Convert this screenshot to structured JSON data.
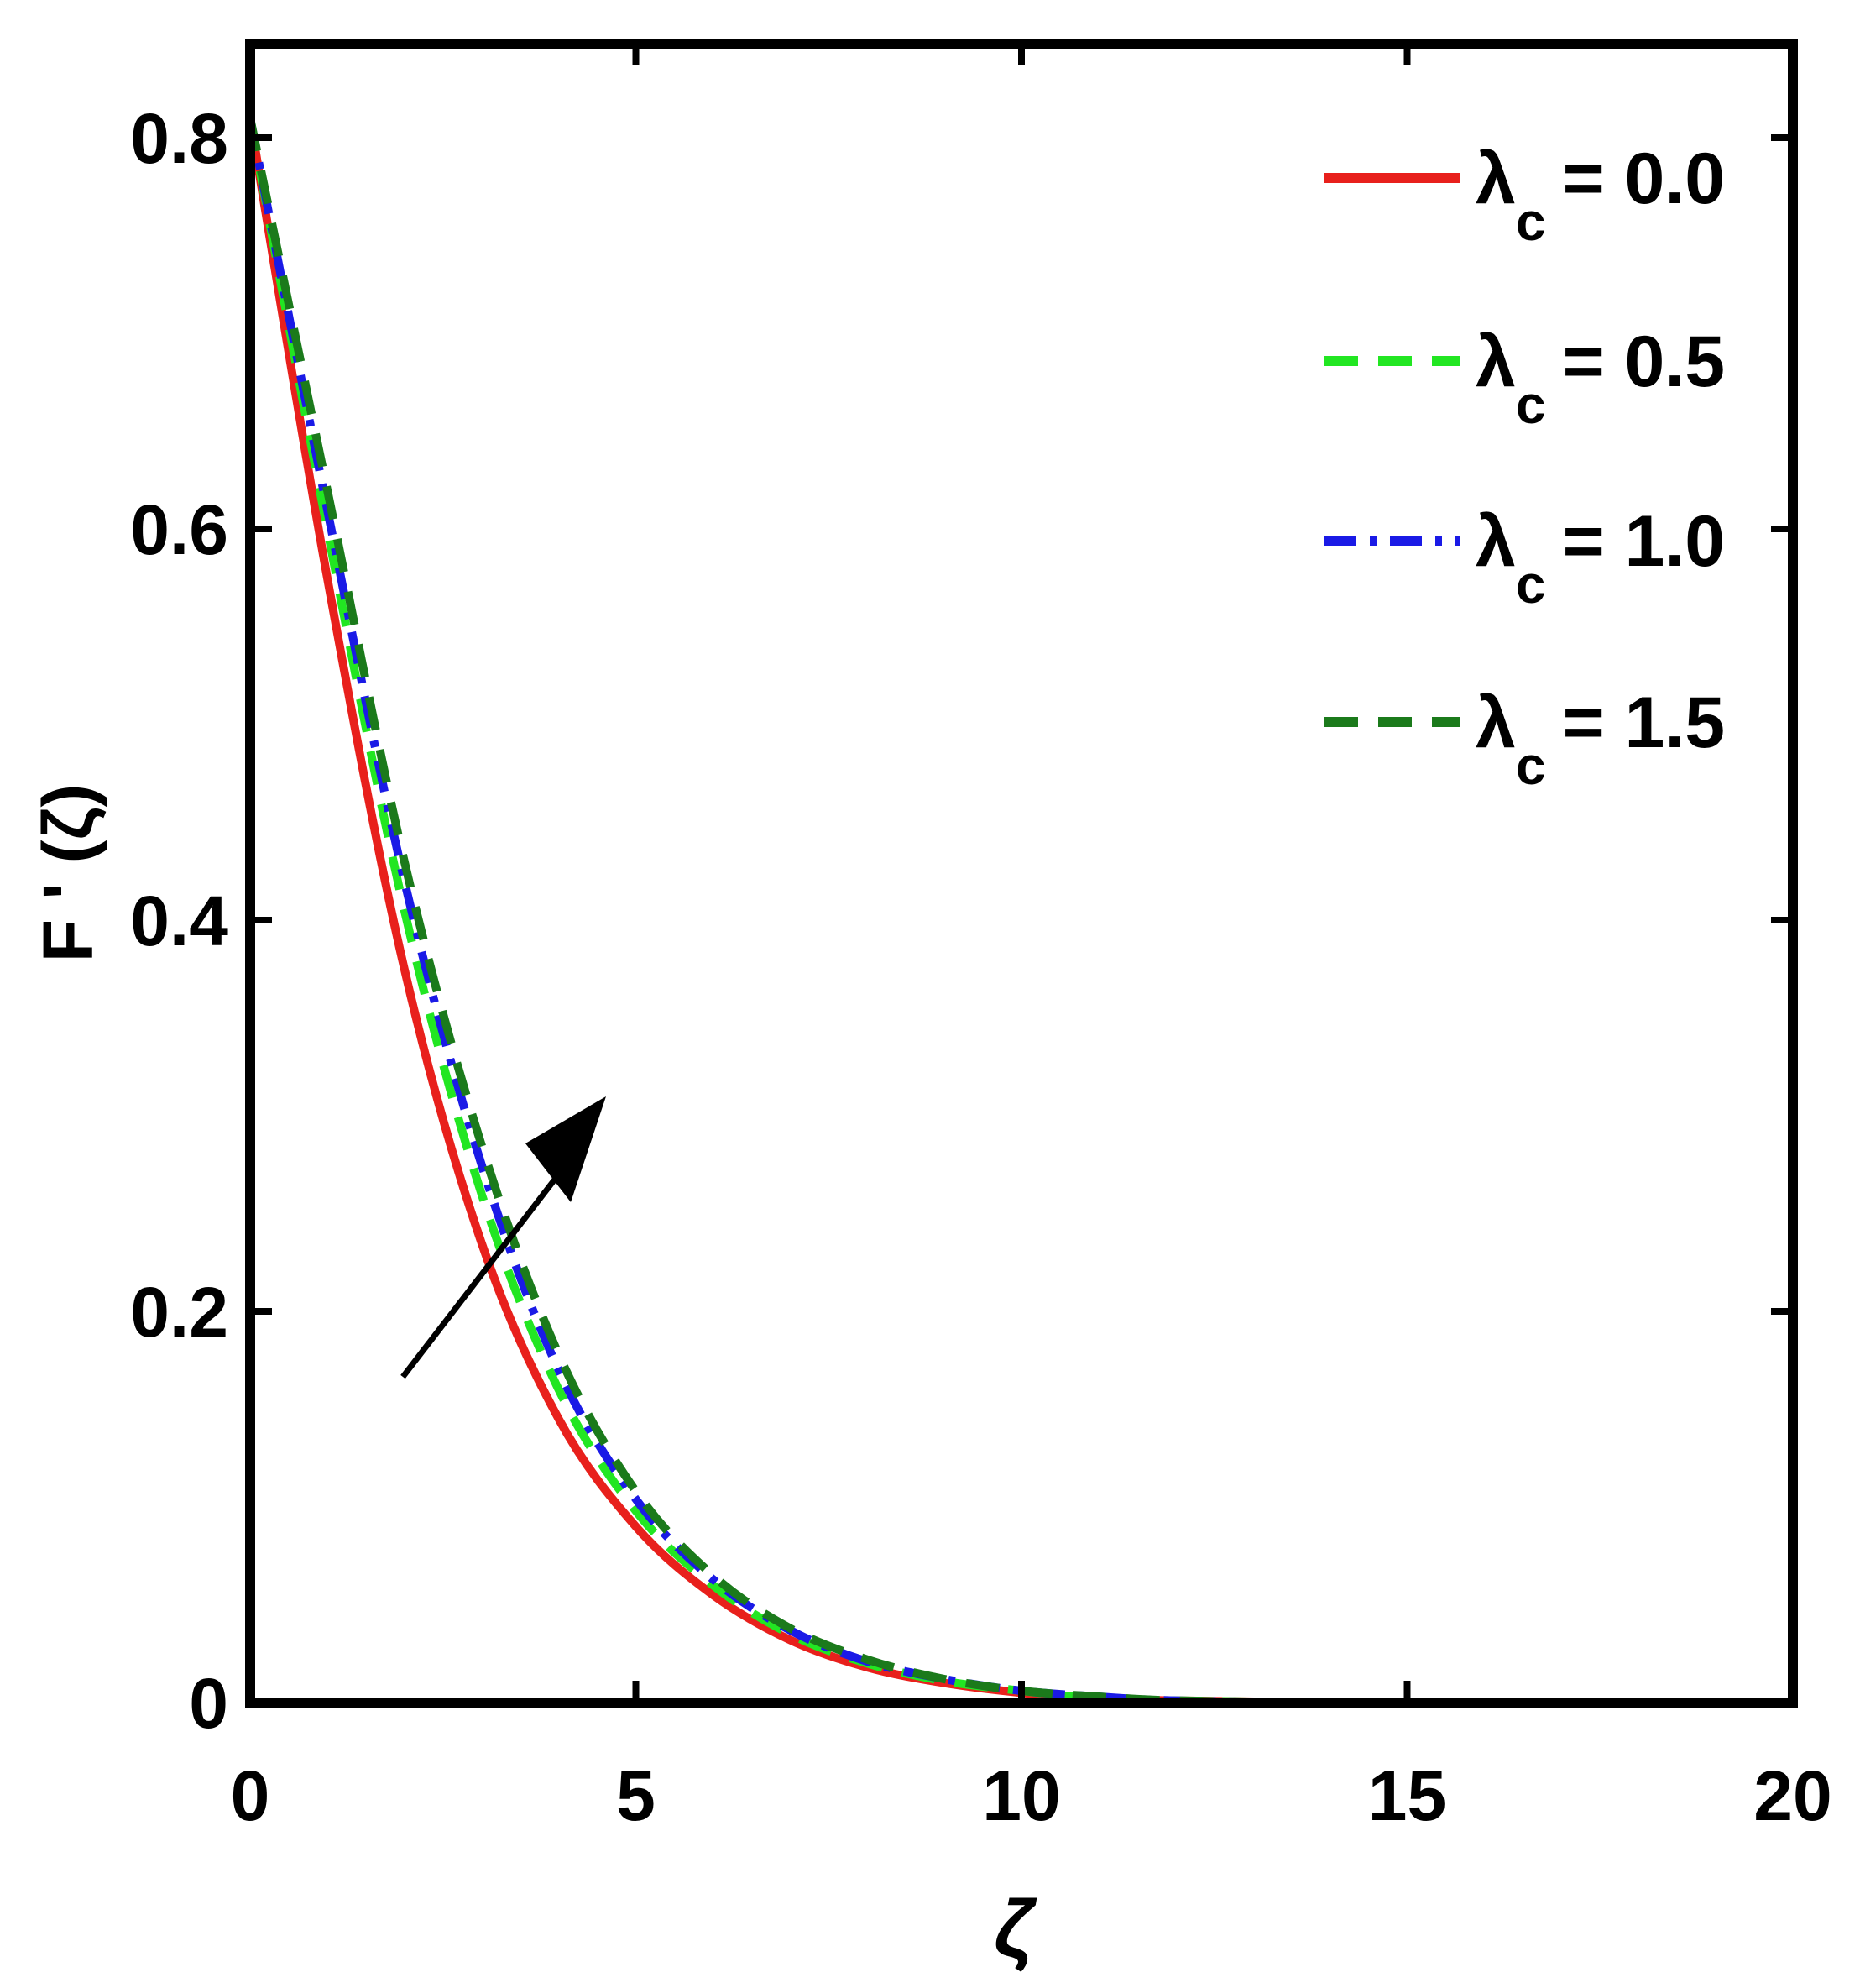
{
  "chart_data": {
    "type": "line",
    "xlabel": "ζ",
    "ylabel": "F ' (ζ)",
    "xlim": [
      0,
      20
    ],
    "ylim": [
      0,
      0.85
    ],
    "xticks": [
      0,
      5,
      10,
      15,
      20
    ],
    "xtick_labels": [
      "0",
      "5",
      "10",
      "15",
      "20"
    ],
    "yticks": [
      0,
      0.2,
      0.4,
      0.6,
      0.8
    ],
    "ytick_labels": [
      "0",
      "0.2",
      "0.4",
      "0.6",
      "0.8"
    ],
    "grid": false,
    "legend_position": "top-right",
    "annotation": "arrow indicating increasing λc",
    "x": [
      0,
      1,
      2,
      3,
      4,
      5,
      6,
      7,
      8,
      9,
      10,
      11,
      12,
      14,
      16,
      18,
      20
    ],
    "series": [
      {
        "name_symbol": "λ",
        "name_sub": "c",
        "name_value": "= 0.0",
        "color": "#e8201c",
        "dash": "solid",
        "values": [
          0.81,
          0.575,
          0.375,
          0.235,
          0.145,
          0.09,
          0.055,
          0.032,
          0.018,
          0.01,
          0.005,
          0.002,
          0.001,
          0.0,
          0.0,
          0.0,
          0.0
        ]
      },
      {
        "name_symbol": "λ",
        "name_sub": "c",
        "name_value": "= 0.5",
        "color": "#22e622",
        "dash": "dashed",
        "values": [
          0.81,
          0.6,
          0.405,
          0.26,
          0.16,
          0.098,
          0.06,
          0.035,
          0.02,
          0.011,
          0.006,
          0.002,
          0.001,
          0.0,
          0.0,
          0.0,
          0.0
        ]
      },
      {
        "name_symbol": "λ",
        "name_sub": "c",
        "name_value": "= 1.0",
        "color": "#1a1ae6",
        "dash": "dashdot",
        "values": [
          0.81,
          0.61,
          0.42,
          0.275,
          0.17,
          0.104,
          0.063,
          0.037,
          0.021,
          0.012,
          0.006,
          0.003,
          0.001,
          0.0,
          0.0,
          0.0,
          0.0
        ]
      },
      {
        "name_symbol": "λ",
        "name_sub": "c",
        "name_value": "= 1.5",
        "color": "#1b7a1b",
        "dash": "dashed",
        "values": [
          0.81,
          0.62,
          0.43,
          0.285,
          0.178,
          0.108,
          0.065,
          0.038,
          0.022,
          0.012,
          0.006,
          0.003,
          0.001,
          0.0,
          0.0,
          0.0,
          0.0
        ]
      }
    ]
  }
}
